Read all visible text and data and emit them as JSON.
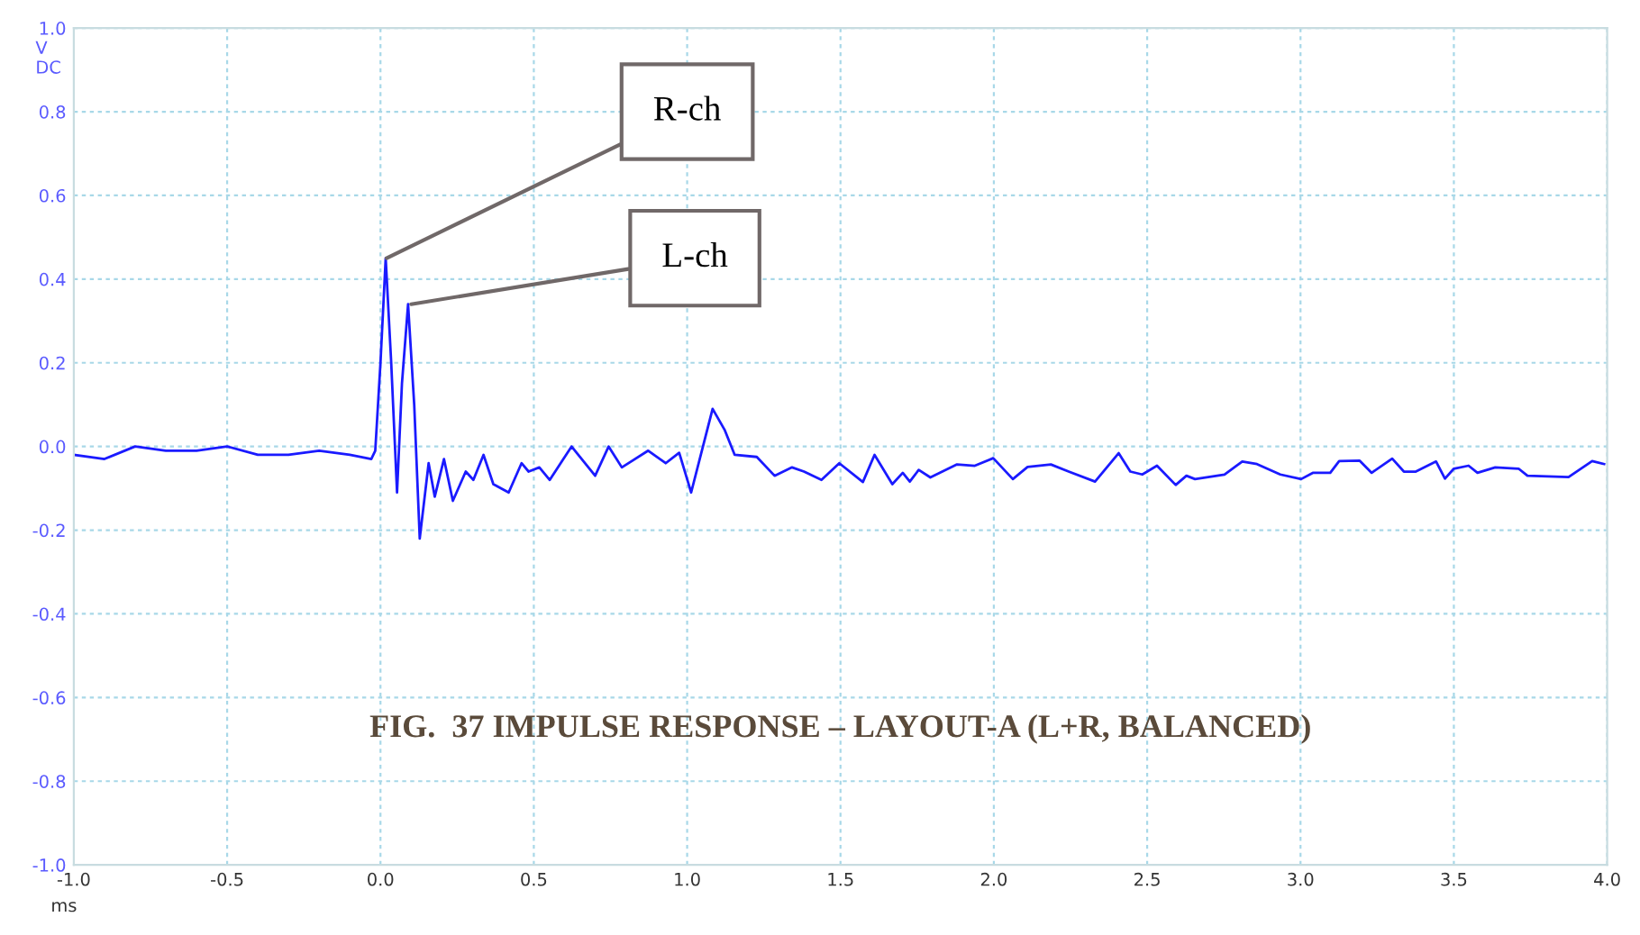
{
  "chart_data": {
    "type": "line",
    "title": "FIG.  37 IMPULSE RESPONSE – LAYOUT-A (L+R, BALANCED)",
    "xlabel": "ms",
    "ylabel": "V\nDC",
    "series": [
      {
        "color": "#1a1aff",
        "x": [
          -1.0,
          -0.9,
          -0.8,
          -0.7,
          -0.6,
          -0.5,
          -0.4,
          -0.3,
          -0.2,
          -0.1,
          -0.03,
          -0.017,
          0.0,
          0.017,
          0.035,
          0.054,
          0.07,
          0.09,
          0.11,
          0.128,
          0.157,
          0.177,
          0.207,
          0.236,
          0.278,
          0.303,
          0.336,
          0.368,
          0.418,
          0.46,
          0.483,
          0.518,
          0.552,
          0.623,
          0.7,
          0.744,
          0.787,
          0.873,
          0.93,
          0.974,
          1.013,
          1.083,
          1.122,
          1.155,
          1.227,
          1.285,
          1.342,
          1.381,
          1.438,
          1.496,
          1.573,
          1.611,
          1.669,
          1.703,
          1.726,
          1.755,
          1.793,
          1.88,
          1.938,
          1.998,
          2.062,
          2.11,
          2.186,
          2.244,
          2.33,
          2.407,
          2.445,
          2.484,
          2.532,
          2.593,
          2.628,
          2.656,
          2.752,
          2.81,
          2.858,
          2.934,
          3.002,
          3.04,
          3.097,
          3.126,
          3.193,
          3.232,
          3.299,
          3.337,
          3.376,
          3.442,
          3.471,
          3.5,
          3.548,
          3.577,
          3.635,
          3.711,
          3.74,
          3.874,
          3.951,
          3.99
        ],
        "values": [
          -0.02,
          -0.03,
          0.0,
          -0.01,
          -0.01,
          0.0,
          -0.02,
          -0.02,
          -0.01,
          -0.02,
          -0.03,
          -0.01,
          0.2,
          0.45,
          0.2,
          -0.11,
          0.15,
          0.34,
          0.1,
          -0.22,
          -0.04,
          -0.12,
          -0.03,
          -0.13,
          -0.06,
          -0.08,
          -0.02,
          -0.09,
          -0.11,
          -0.04,
          -0.06,
          -0.05,
          -0.08,
          0.0,
          -0.07,
          0.0,
          -0.05,
          -0.01,
          -0.04,
          -0.015,
          -0.11,
          0.09,
          0.04,
          -0.02,
          -0.025,
          -0.07,
          -0.05,
          -0.06,
          -0.08,
          -0.04,
          -0.085,
          -0.02,
          -0.09,
          -0.063,
          -0.084,
          -0.056,
          -0.074,
          -0.043,
          -0.046,
          -0.028,
          -0.078,
          -0.049,
          -0.043,
          -0.06,
          -0.084,
          -0.016,
          -0.06,
          -0.067,
          -0.046,
          -0.092,
          -0.07,
          -0.078,
          -0.067,
          -0.036,
          -0.042,
          -0.067,
          -0.078,
          -0.063,
          -0.063,
          -0.035,
          -0.034,
          -0.063,
          -0.029,
          -0.06,
          -0.06,
          -0.036,
          -0.077,
          -0.053,
          -0.046,
          -0.063,
          -0.05,
          -0.053,
          -0.07,
          -0.073,
          -0.035,
          -0.042
        ]
      }
    ],
    "annotations": [
      {
        "text": "R-ch",
        "x": 0.02,
        "y": 0.45
      },
      {
        "text": "L-ch",
        "x": 0.1,
        "y": 0.34
      }
    ],
    "xlim": [
      -1.0,
      4.0
    ],
    "xticks": [
      {
        "value": -1,
        "label": "-1.0"
      },
      -0.5,
      {
        "value": 0,
        "label": "0.0"
      },
      0.5,
      {
        "value": 1,
        "label": "1.0"
      },
      1.5,
      {
        "value": 2,
        "label": "2.0"
      },
      2.5,
      {
        "value": 3,
        "label": "3.0"
      },
      3.5,
      {
        "value": 4,
        "label": "4.0"
      }
    ],
    "ylim": [
      -1.0,
      1.0
    ],
    "yticks": [
      {
        "value": -1,
        "label": "-1.0"
      },
      -0.8,
      -0.6,
      -0.4,
      -0.2,
      {
        "value": 0,
        "label": "0.0"
      },
      0.2,
      0.4,
      0.6,
      0.8,
      {
        "value": 1,
        "label": "1.0"
      }
    ],
    "grid": true,
    "legend": false,
    "marker": "none",
    "line_style": "solid"
  }
}
